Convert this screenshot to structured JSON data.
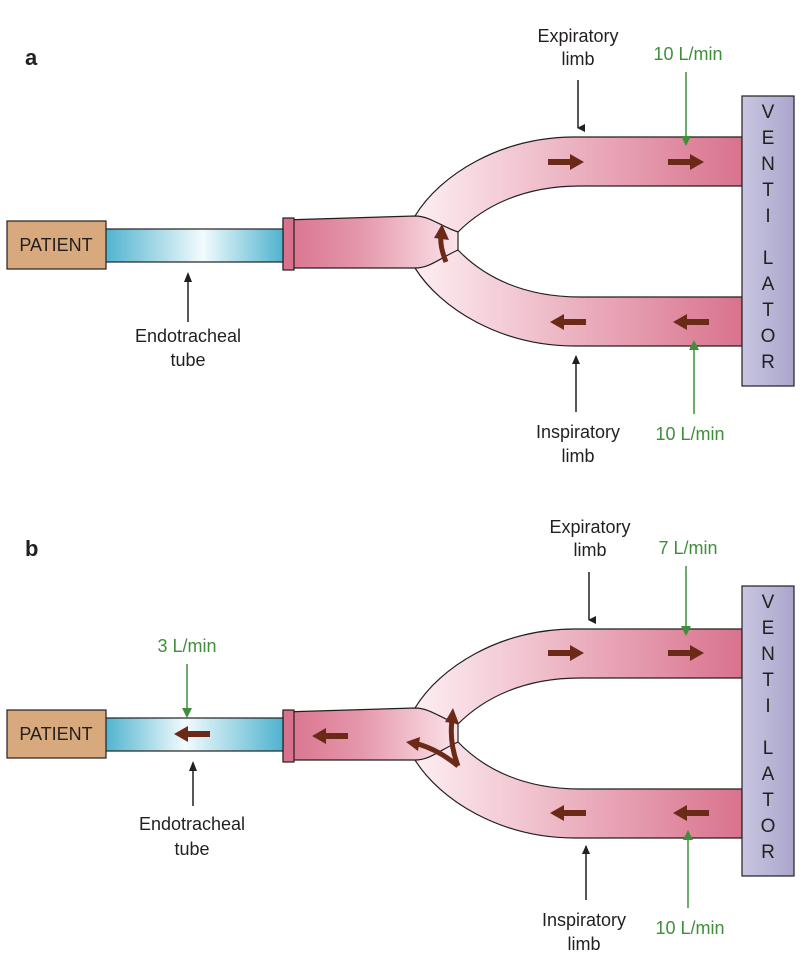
{
  "colors": {
    "tube_pink": "#d9738e",
    "tube_pink_light": "#fbe4ea",
    "endotracheal_blue": "#5bbcd6",
    "patient_box": "#d7a97c",
    "ventilator_box": "#b9b6d6",
    "flow_arrow": "#6b2a17",
    "annotation_green": "#3f8f3a",
    "pointer_black": "#231f20"
  },
  "panels": [
    {
      "letter": "a",
      "patient_label": "PATIENT",
      "ventilator_letters": [
        "V",
        "E",
        "N",
        "T",
        "I",
        "L",
        "A",
        "T",
        "O",
        "R"
      ],
      "labels": {
        "expiratory_limb": [
          "Expiratory",
          "limb"
        ],
        "inspiratory_limb": [
          "Inspiratory",
          "limb"
        ],
        "endotracheal_tube": [
          "Endotracheal",
          "tube"
        ]
      },
      "flows": {
        "expiratory": "10 L/min",
        "inspiratory": "10 L/min",
        "patient": ""
      }
    },
    {
      "letter": "b",
      "patient_label": "PATIENT",
      "ventilator_letters": [
        "V",
        "E",
        "N",
        "T",
        "I",
        "L",
        "A",
        "T",
        "O",
        "R"
      ],
      "labels": {
        "expiratory_limb": [
          "Expiratory",
          "limb"
        ],
        "inspiratory_limb": [
          "Inspiratory",
          "limb"
        ],
        "endotracheal_tube": [
          "Endotracheal",
          "tube"
        ]
      },
      "flows": {
        "expiratory": "7 L/min",
        "inspiratory": "10 L/min",
        "patient": "3 L/min"
      }
    }
  ]
}
